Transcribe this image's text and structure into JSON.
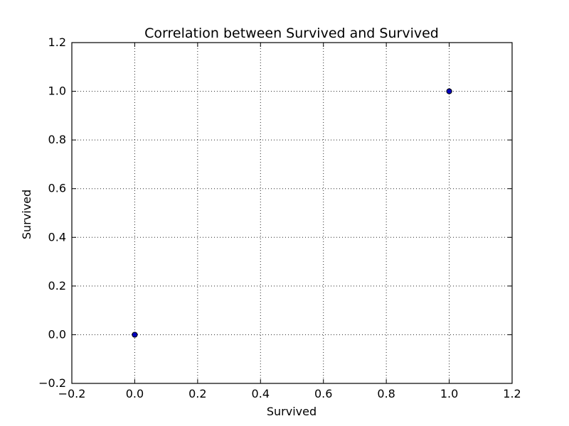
{
  "chart_data": {
    "type": "scatter",
    "title": "Correlation between Survived and Survived",
    "xlabel": "Survived",
    "ylabel": "Survived",
    "xlim": [
      -0.2,
      1.2
    ],
    "ylim": [
      -0.2,
      1.2
    ],
    "xticks": [
      -0.2,
      0.0,
      0.2,
      0.4,
      0.6,
      0.8,
      1.0,
      1.2
    ],
    "yticks": [
      -0.2,
      0.0,
      0.2,
      0.4,
      0.6,
      0.8,
      1.0,
      1.2
    ],
    "xtick_labels": [
      "−0.2",
      "0.0",
      "0.2",
      "0.4",
      "0.6",
      "0.8",
      "1.0",
      "1.2"
    ],
    "ytick_labels": [
      "−0.2",
      "0.0",
      "0.2",
      "0.4",
      "0.6",
      "0.8",
      "1.0",
      "1.2"
    ],
    "grid": true,
    "points": [
      {
        "x": 0.0,
        "y": 0.0
      },
      {
        "x": 1.0,
        "y": 1.0
      }
    ],
    "marker_color": "#0000bf"
  }
}
